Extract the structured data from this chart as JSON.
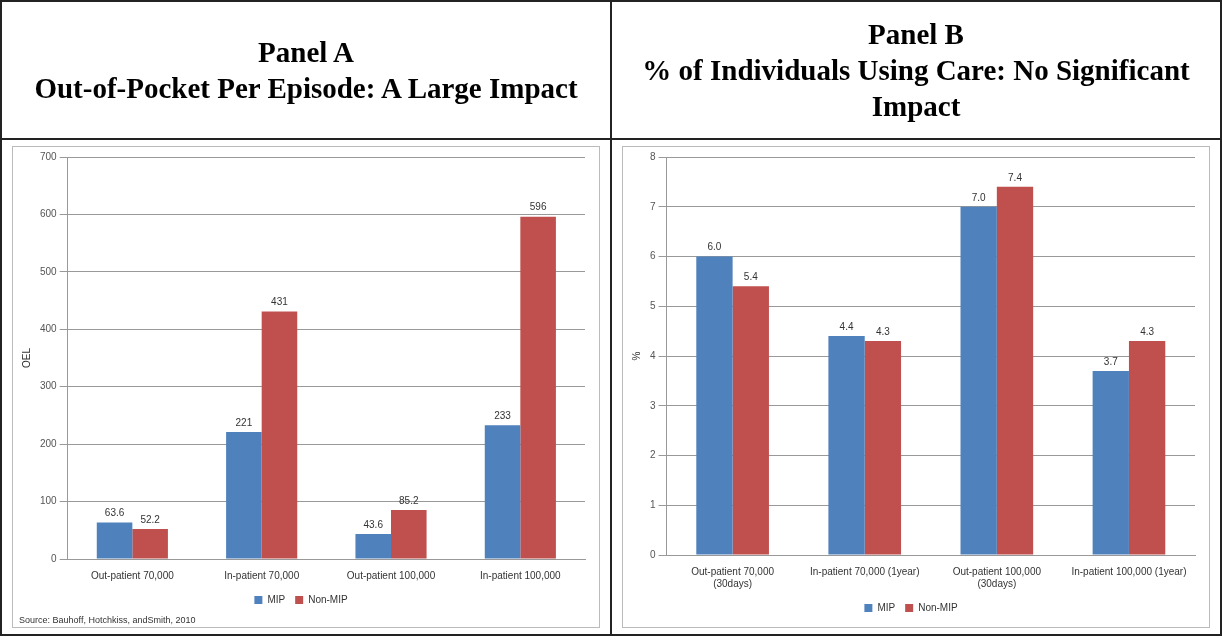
{
  "chart_data": [
    {
      "type": "bar",
      "title": "Panel A\nOut-of-Pocket Per Episode: A Large Impact",
      "ylabel": "OEL",
      "categories": [
        "Out-patient 70,000",
        "In-patient 70,000",
        "Out-patient 100,000",
        "In-patient 100,000"
      ],
      "series": [
        {
          "name": "MIP",
          "color": "#4f81bd",
          "values": [
            63.6,
            221,
            43.6,
            233
          ]
        },
        {
          "name": "Non-MIP",
          "color": "#c0504d",
          "values": [
            52.2,
            431,
            85.2,
            596
          ]
        }
      ],
      "ylim": [
        0,
        700
      ],
      "yticks": [
        0,
        100,
        200,
        300,
        400,
        500,
        600,
        700
      ],
      "grid": "y",
      "legend": "bottom",
      "data_labels": true,
      "annotations": [
        "Source: Bauhoff, Hotchkiss, andSmith, 2010"
      ]
    },
    {
      "type": "bar",
      "title": "Panel B\n% of Individuals Using Care: No Significant Impact",
      "ylabel": "%",
      "categories": [
        "Out-patient 70,000 (30days)",
        "In-patient 70,000 (1year)",
        "Out-patient 100,000 (30days)",
        "In-patient 100,000 (1year)"
      ],
      "series": [
        {
          "name": "MIP",
          "color": "#4f81bd",
          "values": [
            6.0,
            4.4,
            7.0,
            3.7
          ],
          "value_labels": [
            "6.0",
            "4.4",
            "7.0",
            "3.7"
          ]
        },
        {
          "name": "Non-MIP",
          "color": "#c0504d",
          "values": [
            5.4,
            4.3,
            7.4,
            4.3
          ],
          "value_labels": [
            "5.4",
            "4.3",
            "7.4",
            "4.3"
          ]
        }
      ],
      "ylim": [
        0,
        8
      ],
      "yticks": [
        0,
        1,
        2,
        3,
        4,
        5,
        6,
        7,
        8
      ],
      "grid": "y",
      "legend": "bottom"
    }
  ]
}
